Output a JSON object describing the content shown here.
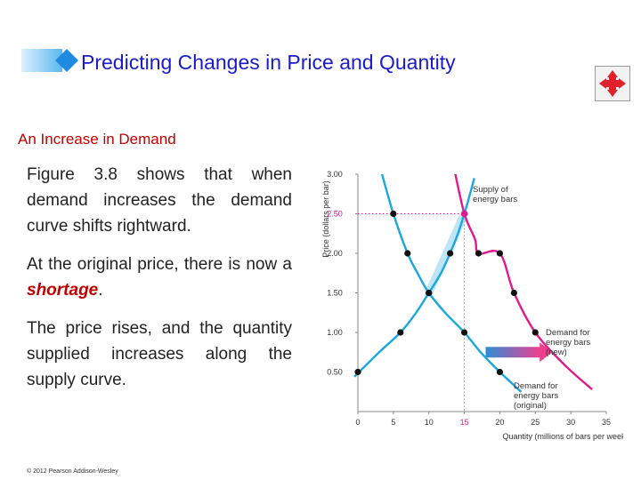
{
  "header": {
    "title": "Predicting Changes in Price and Quantity",
    "colors": {
      "bar_start": "#dfefff",
      "bar_end": "#59b8ee",
      "diamond": "#1e8be0",
      "title": "#1a1acc"
    }
  },
  "nav_button": {
    "icon": "four-way-arrows-icon",
    "color": "#e0202a"
  },
  "section": {
    "heading": "An Increase in Demand"
  },
  "paragraphs": {
    "p1": "Figure 3.8 shows that when demand increases the demand curve shifts rightward.",
    "p2_before": "At the original price, there is now a ",
    "p2_emphasis": "shortage",
    "p2_after": ".",
    "p3": "The price rises, and the quantity supplied increases along the supply curve."
  },
  "footer": {
    "copyright": "© 2012 Pearson Addison-Wesley"
  },
  "chart_data": {
    "type": "line",
    "xlabel": "Quantity (millions of bars per week)",
    "ylabel": "Price (dollars per bar)",
    "xlim": [
      0,
      35
    ],
    "ylim": [
      0,
      3.0
    ],
    "x_ticks": [
      "0",
      "5",
      "10",
      "15",
      "20",
      "25",
      "30",
      "35"
    ],
    "y_ticks": [
      "0.50",
      "1.00",
      "1.50",
      "2.00",
      "2.50",
      "3.00"
    ],
    "highlight_x_tick": "15",
    "highlight_y_tick": "2.50",
    "series": [
      {
        "name": "Supply of energy bars",
        "color": "#1aa7dc",
        "points": [
          [
            0,
            0.5
          ],
          [
            6,
            1.0
          ],
          [
            10,
            1.5
          ],
          [
            13,
            2.0
          ],
          [
            15,
            2.5
          ]
        ],
        "curve": [
          [
            -0.5,
            0.44
          ],
          [
            3,
            0.75
          ],
          [
            6,
            1.0
          ],
          [
            8.2,
            1.25
          ],
          [
            10,
            1.5
          ],
          [
            11.7,
            1.75
          ],
          [
            13,
            2.0
          ],
          [
            14.1,
            2.25
          ],
          [
            15,
            2.5
          ],
          [
            15.8,
            2.75
          ],
          [
            16.4,
            2.95
          ]
        ]
      },
      {
        "name": "Demand for energy bars (original)",
        "color": "#1aa7dc",
        "points": [
          [
            5,
            2.5
          ],
          [
            7,
            2.0
          ],
          [
            10,
            1.5
          ],
          [
            15,
            1.0
          ],
          [
            20,
            0.5
          ]
        ],
        "curve": [
          [
            3.4,
            3.0
          ],
          [
            5,
            2.5
          ],
          [
            7,
            2.0
          ],
          [
            8.4,
            1.75
          ],
          [
            10,
            1.5
          ],
          [
            12.3,
            1.25
          ],
          [
            15,
            1.0
          ],
          [
            17.3,
            0.75
          ],
          [
            20,
            0.5
          ],
          [
            23,
            0.25
          ]
        ]
      },
      {
        "name": "Demand for energy bars (new)",
        "color": "#e0198c",
        "points": [
          [
            15,
            2.5
          ],
          [
            17,
            2.0
          ],
          [
            20,
            2.0
          ],
          [
            22,
            1.5
          ],
          [
            25,
            1.0
          ]
        ],
        "curve": [
          [
            13.5,
            3.1
          ],
          [
            15,
            2.5
          ],
          [
            16.5,
            2.18
          ],
          [
            17,
            2.0
          ],
          [
            20,
            2.0
          ],
          [
            22,
            1.5
          ],
          [
            25,
            1.0
          ],
          [
            29,
            0.6
          ],
          [
            33,
            0.28
          ]
        ]
      }
    ],
    "equilibrium": {
      "original": [
        10,
        1.5
      ],
      "new": [
        15,
        2.5
      ]
    },
    "shift_arrow": {
      "from": [
        18,
        0.75
      ],
      "to": [
        27,
        0.75
      ],
      "color_start": "#2e8ed6",
      "color_end": "#ef3d8c"
    },
    "labels": {
      "supply": [
        "Supply of",
        "energy bars"
      ],
      "demand_new": [
        "Demand for",
        "energy bars",
        "(new)"
      ],
      "demand_original": [
        "Demand for",
        "energy bars",
        "(original)"
      ]
    }
  }
}
